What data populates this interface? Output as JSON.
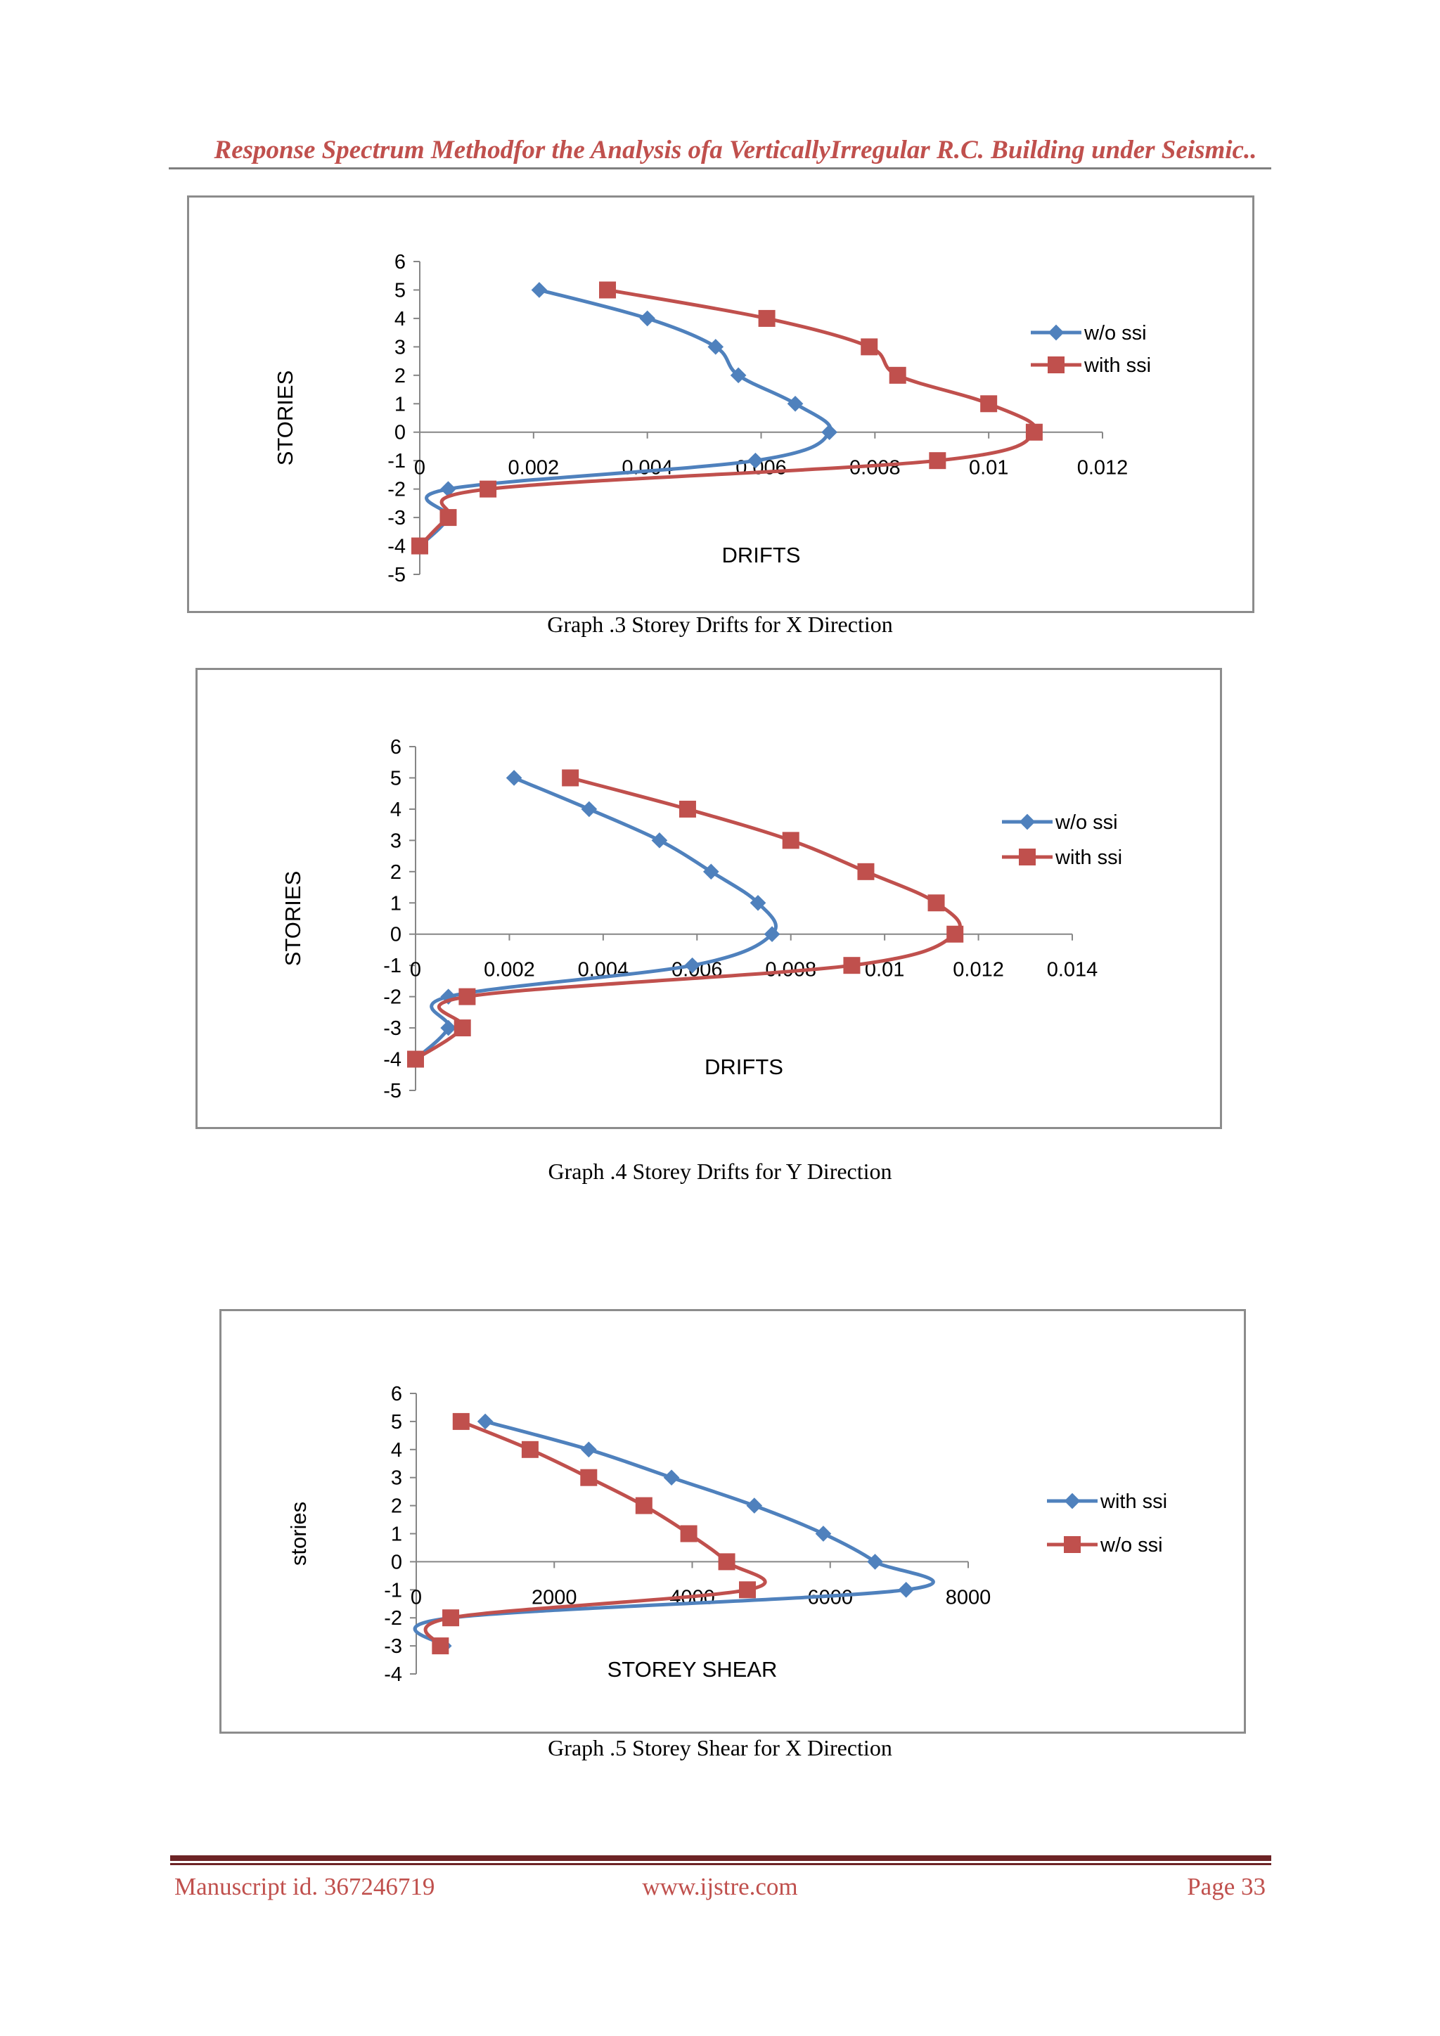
{
  "header": {
    "running_title": "Response Spectrum Methodfor the Analysis ofa VerticallyIrregular R.C. Building under Seismic.."
  },
  "figures": [
    {
      "caption": "Graph .3 Storey Drifts for X Direction"
    },
    {
      "caption": "Graph .4 Storey Drifts for Y Direction"
    },
    {
      "caption": "Graph .5 Storey Shear for X Direction"
    }
  ],
  "chart_data": [
    {
      "type": "line",
      "xlabel": "DRIFTS",
      "ylabel": "STORIES",
      "xlim": [
        0,
        0.012
      ],
      "ylim": [
        -5,
        6
      ],
      "x_ticks": [
        "0",
        "0.002",
        "0.004",
        "0.006",
        "0.008",
        "0.01",
        "0.012"
      ],
      "y_ticks": [
        "6",
        "5",
        "4",
        "3",
        "2",
        "1",
        "0",
        "-1",
        "-2",
        "-3",
        "-4",
        "-5"
      ],
      "legend": "right",
      "series": [
        {
          "name": "w/o ssi",
          "color": "#4f81bd",
          "marker": "diamond",
          "points": [
            [
              0.0021,
              5
            ],
            [
              0.004,
              4
            ],
            [
              0.0052,
              3
            ],
            [
              0.0056,
              2
            ],
            [
              0.0066,
              1
            ],
            [
              0.0072,
              0
            ],
            [
              0.0059,
              -1
            ],
            [
              0.0005,
              -2
            ],
            [
              0.0005,
              -3
            ],
            [
              0.0,
              -4
            ]
          ]
        },
        {
          "name": "with ssi",
          "color": "#c0504d",
          "marker": "square",
          "points": [
            [
              0.0033,
              5
            ],
            [
              0.0061,
              4
            ],
            [
              0.0079,
              3
            ],
            [
              0.0084,
              2
            ],
            [
              0.01,
              1
            ],
            [
              0.0108,
              0
            ],
            [
              0.0091,
              -1
            ],
            [
              0.0012,
              -2
            ],
            [
              0.0005,
              -3
            ],
            [
              0.0,
              -4
            ]
          ]
        }
      ]
    },
    {
      "type": "line",
      "xlabel": "DRIFTS",
      "ylabel": "STORIES",
      "xlim": [
        0,
        0.014
      ],
      "ylim": [
        -5,
        6
      ],
      "x_ticks": [
        "0",
        "0.002",
        "0.004",
        "0.006",
        "0.008",
        "0.01",
        "0.012",
        "0.014"
      ],
      "y_ticks": [
        "6",
        "5",
        "4",
        "3",
        "2",
        "1",
        "0",
        "-1",
        "-2",
        "-3",
        "-4",
        "-5"
      ],
      "legend": "right",
      "series": [
        {
          "name": "w/o ssi",
          "color": "#4f81bd",
          "marker": "diamond",
          "points": [
            [
              0.0021,
              5
            ],
            [
              0.0037,
              4
            ],
            [
              0.0052,
              3
            ],
            [
              0.0063,
              2
            ],
            [
              0.0073,
              1
            ],
            [
              0.0076,
              0
            ],
            [
              0.0059,
              -1
            ],
            [
              0.0007,
              -2
            ],
            [
              0.0007,
              -3
            ],
            [
              0.0,
              -4
            ]
          ]
        },
        {
          "name": "with ssi",
          "color": "#c0504d",
          "marker": "square",
          "points": [
            [
              0.0033,
              5
            ],
            [
              0.0058,
              4
            ],
            [
              0.008,
              3
            ],
            [
              0.0096,
              2
            ],
            [
              0.0111,
              1
            ],
            [
              0.0115,
              0
            ],
            [
              0.0093,
              -1
            ],
            [
              0.0011,
              -2
            ],
            [
              0.001,
              -3
            ],
            [
              0.0,
              -4
            ]
          ]
        }
      ]
    },
    {
      "type": "line",
      "xlabel": "STOREY SHEAR",
      "ylabel": "stories",
      "xlim": [
        0,
        8000
      ],
      "ylim": [
        -4,
        6
      ],
      "x_ticks": [
        "0",
        "2000",
        "4000",
        "6000",
        "8000"
      ],
      "y_ticks": [
        "6",
        "5",
        "4",
        "3",
        "2",
        "1",
        "0",
        "-1",
        "-2",
        "-3",
        "-4"
      ],
      "legend": "right",
      "series": [
        {
          "name": "with ssi",
          "color": "#4f81bd",
          "marker": "diamond",
          "points": [
            [
              1000,
              5
            ],
            [
              2500,
              4
            ],
            [
              3700,
              3
            ],
            [
              4900,
              2
            ],
            [
              5900,
              1
            ],
            [
              6650,
              0
            ],
            [
              7100,
              -1
            ],
            [
              500,
              -2
            ],
            [
              400,
              -3
            ]
          ]
        },
        {
          "name": "w/o ssi",
          "color": "#c0504d",
          "marker": "square",
          "points": [
            [
              650,
              5
            ],
            [
              1650,
              4
            ],
            [
              2500,
              3
            ],
            [
              3300,
              2
            ],
            [
              3950,
              1
            ],
            [
              4500,
              0
            ],
            [
              4800,
              -1
            ],
            [
              500,
              -2
            ],
            [
              350,
              -3
            ]
          ]
        }
      ]
    }
  ],
  "footer": {
    "manuscript": "Manuscript id. 367246719",
    "website": "www.ijstre.com",
    "page": "Page 33"
  }
}
